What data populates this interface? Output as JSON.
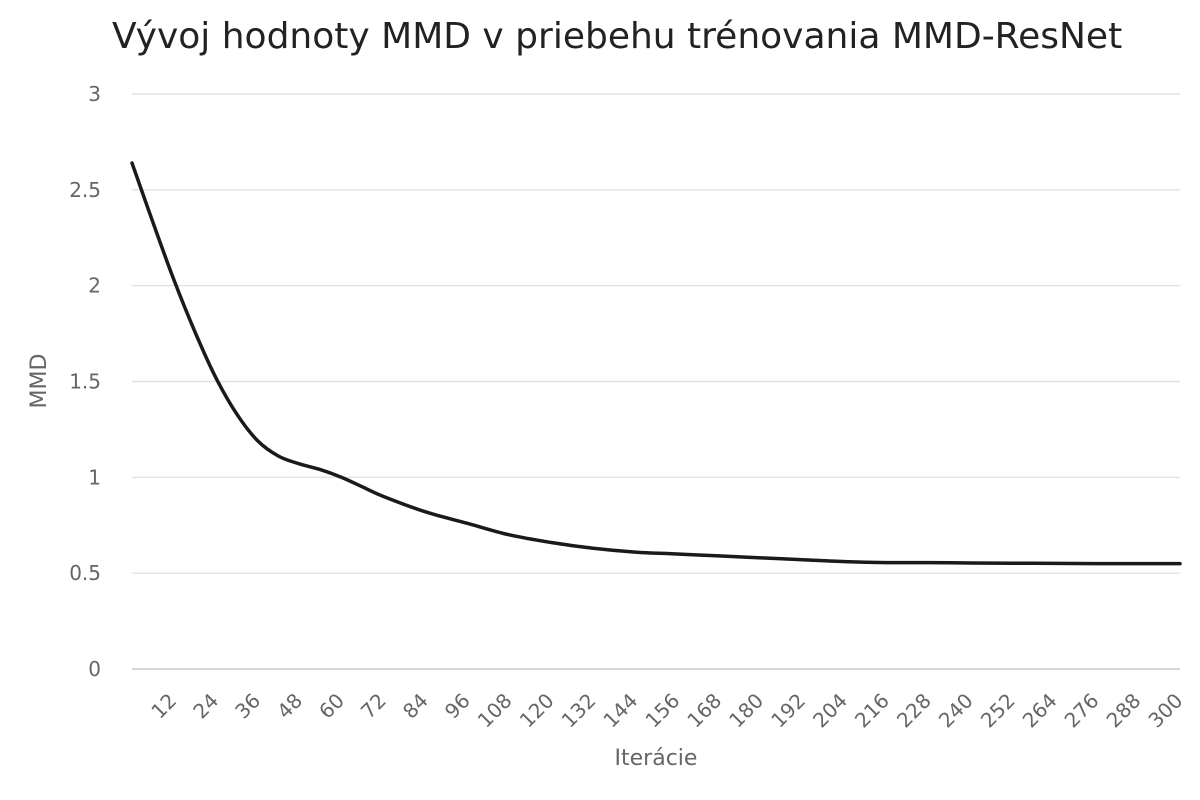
{
  "chart_data": {
    "type": "line",
    "title": "Vývoj hodnoty MMD v priebehu trénovania MMD-ResNet",
    "xlabel": "Iterácie",
    "ylabel": "MMD",
    "ylim": [
      0,
      3
    ],
    "y_ticks": [
      "0",
      "0.5",
      "1",
      "1.5",
      "2",
      "2.5",
      "3"
    ],
    "x_ticks": [
      "12",
      "24",
      "36",
      "48",
      "60",
      "72",
      "84",
      "96",
      "108",
      "120",
      "132",
      "144",
      "156",
      "168",
      "180",
      "192",
      "204",
      "216",
      "228",
      "240",
      "252",
      "264",
      "276",
      "288",
      "300"
    ],
    "xlim": [
      0,
      300
    ],
    "grid": true,
    "series": [
      {
        "x": [
          0,
          6,
          12,
          18,
          24,
          30,
          36,
          42,
          48,
          54,
          60,
          66,
          72,
          84,
          96,
          108,
          120,
          132,
          144,
          156,
          168,
          180,
          192,
          204,
          216,
          228,
          240,
          252,
          264,
          276,
          288,
          300
        ],
        "y": [
          2.64,
          2.33,
          2.03,
          1.76,
          1.52,
          1.33,
          1.19,
          1.11,
          1.07,
          1.04,
          1.0,
          0.95,
          0.9,
          0.82,
          0.76,
          0.7,
          0.66,
          0.63,
          0.61,
          0.6,
          0.59,
          0.58,
          0.57,
          0.56,
          0.555,
          0.555,
          0.553,
          0.552,
          0.551,
          0.55,
          0.55,
          0.55
        ],
        "color": "#1a1a1a"
      }
    ]
  }
}
